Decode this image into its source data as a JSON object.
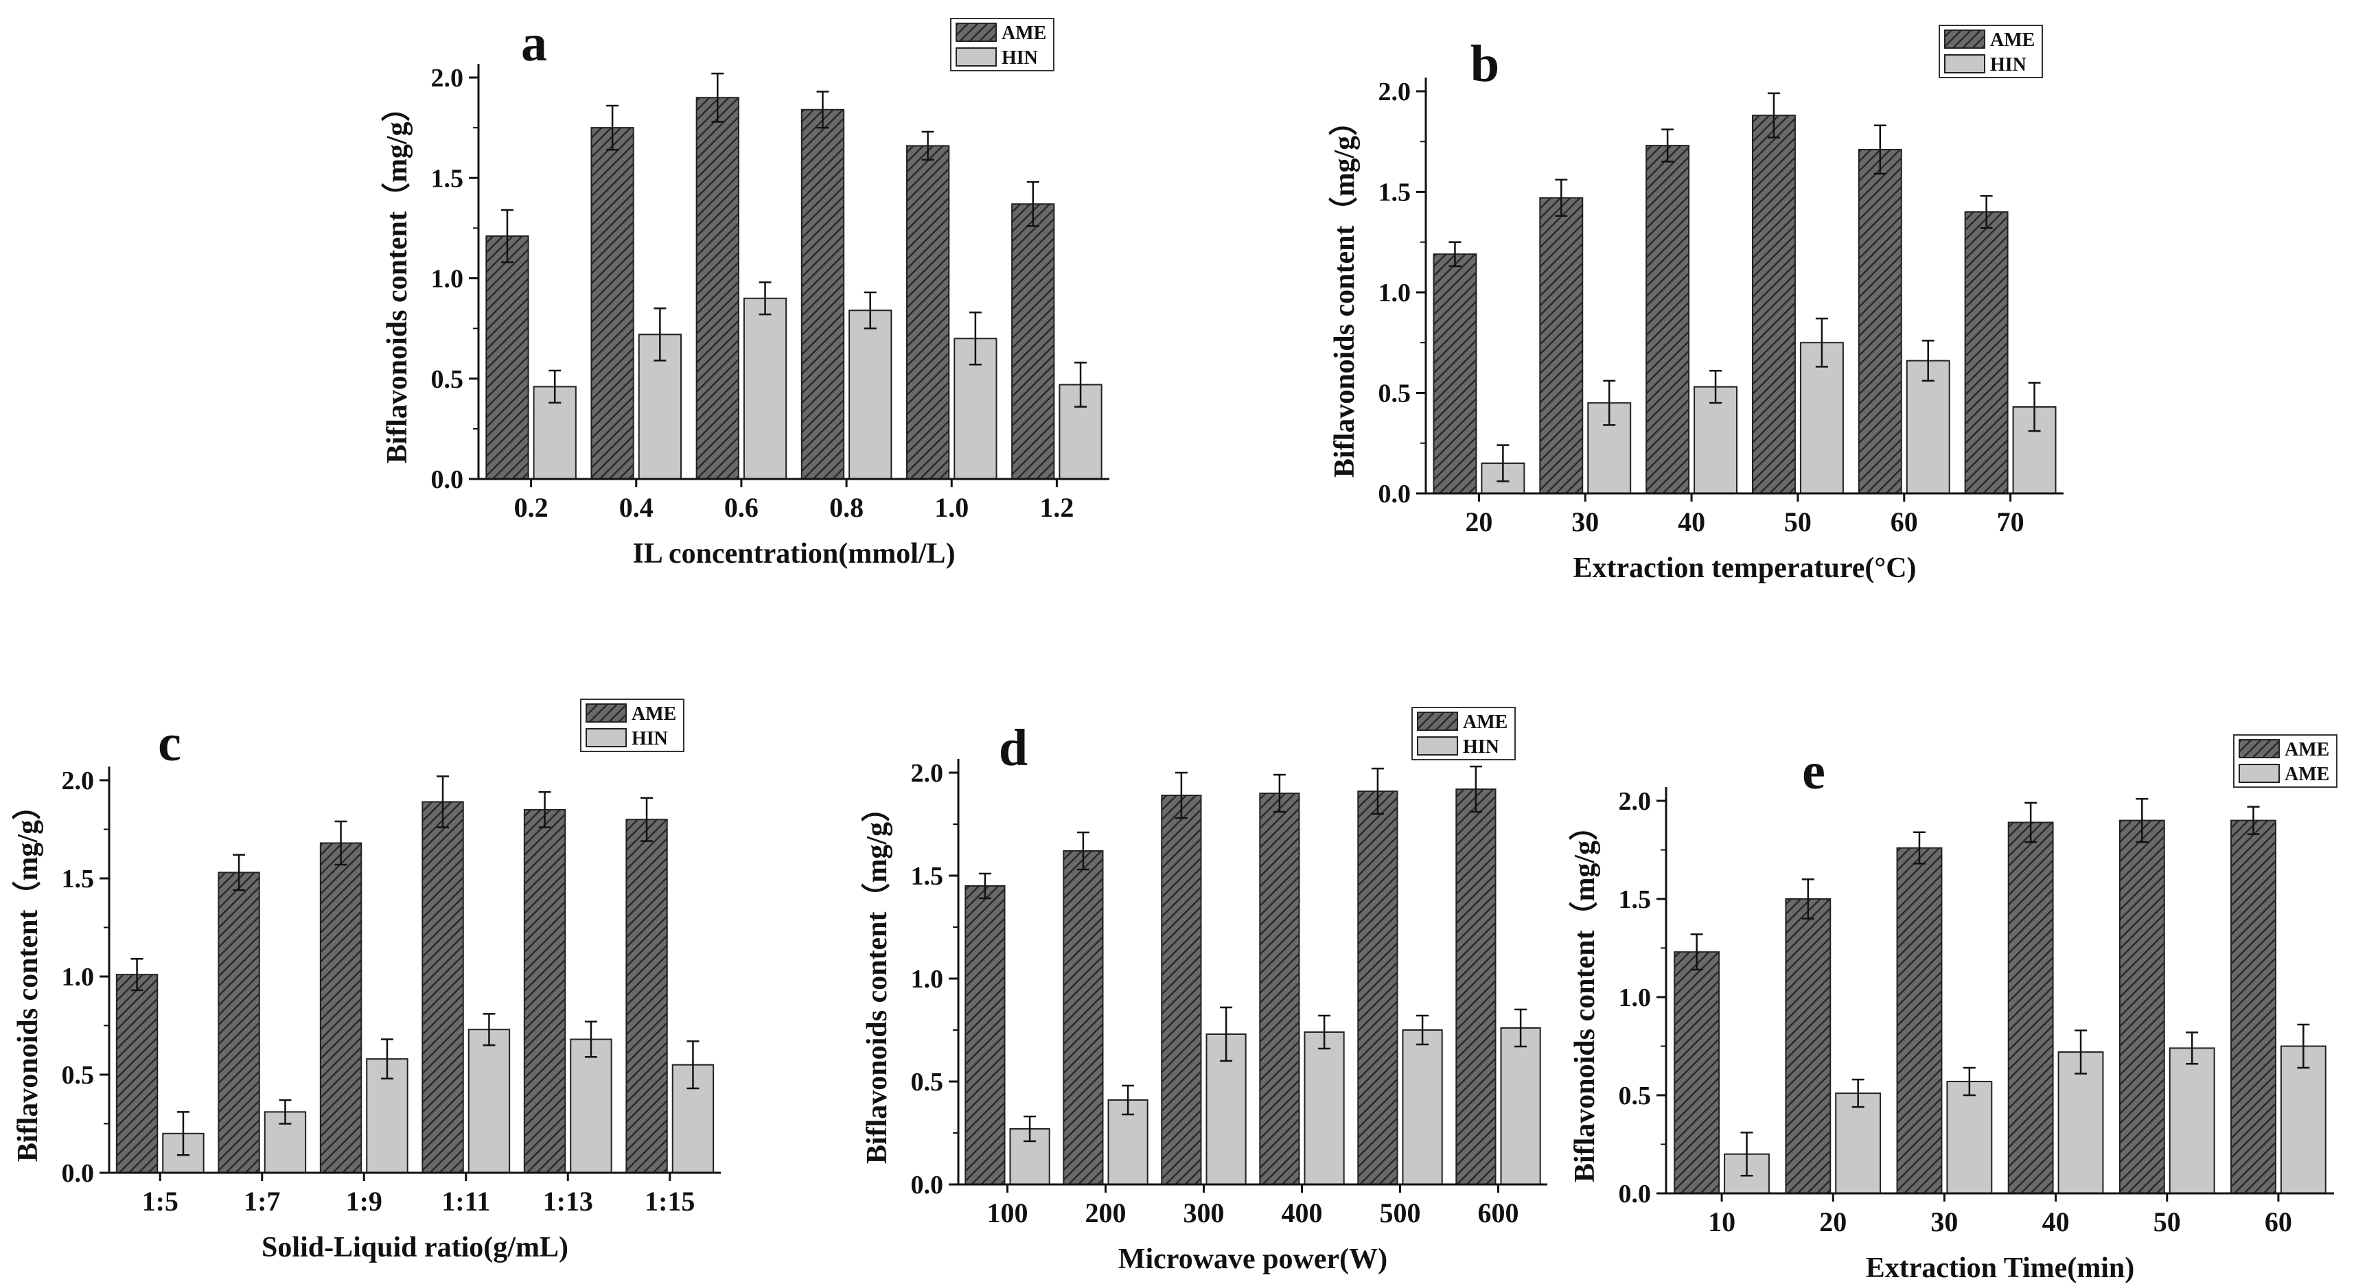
{
  "colors": {
    "ame_fill": "#555555",
    "hin_fill": "#c8c8c8",
    "axis": "#111111"
  },
  "chart_data": [
    {
      "panel": "a",
      "type": "bar",
      "xlabel": "IL concentration(mmol/L)",
      "ylabel": "Biflavonoids content（mg/g）",
      "ylim": [
        0,
        2.0
      ],
      "yticks": [
        "0.0",
        "0.5",
        "1.0",
        "1.5",
        "2.0"
      ],
      "categories": [
        "0.2",
        "0.4",
        "0.6",
        "0.8",
        "1.0",
        "1.2"
      ],
      "series": [
        {
          "name": "AME",
          "values": [
            1.21,
            1.75,
            1.9,
            1.84,
            1.66,
            1.37
          ],
          "errors": [
            0.13,
            0.11,
            0.12,
            0.09,
            0.07,
            0.11
          ]
        },
        {
          "name": "HIN",
          "values": [
            0.46,
            0.72,
            0.9,
            0.84,
            0.7,
            0.47
          ],
          "errors": [
            0.08,
            0.13,
            0.08,
            0.09,
            0.13,
            0.11
          ]
        }
      ],
      "legend_loc": "top-right"
    },
    {
      "panel": "b",
      "type": "bar",
      "xlabel": "Extraction temperature(°C)",
      "ylabel": "Biflavonoids content（mg/g）",
      "ylim": [
        0,
        2.0
      ],
      "yticks": [
        "0.0",
        "0.5",
        "1.0",
        "1.5",
        "2.0"
      ],
      "categories": [
        "20",
        "30",
        "40",
        "50",
        "60",
        "70"
      ],
      "series": [
        {
          "name": "AME",
          "values": [
            1.19,
            1.47,
            1.73,
            1.88,
            1.71,
            1.4
          ],
          "errors": [
            0.06,
            0.09,
            0.08,
            0.11,
            0.12,
            0.08
          ]
        },
        {
          "name": "HIN",
          "values": [
            0.15,
            0.45,
            0.53,
            0.75,
            0.66,
            0.43
          ],
          "errors": [
            0.09,
            0.11,
            0.08,
            0.12,
            0.1,
            0.12
          ]
        }
      ],
      "legend_loc": "top-right"
    },
    {
      "panel": "c",
      "type": "bar",
      "xlabel": "Solid-Liquid ratio(g/mL)",
      "ylabel": "Biflavonoids content（mg/g）",
      "ylim": [
        0,
        2.0
      ],
      "yticks": [
        "0.0",
        "0.5",
        "1.0",
        "1.5",
        "2.0"
      ],
      "categories": [
        "1:5",
        "1:7",
        "1:9",
        "1:11",
        "1:13",
        "1:15"
      ],
      "series": [
        {
          "name": "AME",
          "values": [
            1.01,
            1.53,
            1.68,
            1.89,
            1.85,
            1.8
          ],
          "errors": [
            0.08,
            0.09,
            0.11,
            0.13,
            0.09,
            0.11
          ]
        },
        {
          "name": "HIN",
          "values": [
            0.2,
            0.31,
            0.58,
            0.73,
            0.68,
            0.55
          ],
          "errors": [
            0.11,
            0.06,
            0.1,
            0.08,
            0.09,
            0.12
          ]
        }
      ],
      "legend_loc": "top-right"
    },
    {
      "panel": "d",
      "type": "bar",
      "xlabel": "Microwave power(W)",
      "ylabel": "Biflavonoids content（mg/g）",
      "ylim": [
        0,
        2.0
      ],
      "yticks": [
        "0.0",
        "0.5",
        "1.0",
        "1.5",
        "2.0"
      ],
      "categories": [
        "100",
        "200",
        "300",
        "400",
        "500",
        "600"
      ],
      "series": [
        {
          "name": "AME",
          "values": [
            1.45,
            1.62,
            1.89,
            1.9,
            1.91,
            1.92
          ],
          "errors": [
            0.06,
            0.09,
            0.11,
            0.09,
            0.11,
            0.11
          ]
        },
        {
          "name": "HIN",
          "values": [
            0.27,
            0.41,
            0.73,
            0.74,
            0.75,
            0.76
          ],
          "errors": [
            0.06,
            0.07,
            0.13,
            0.08,
            0.07,
            0.09
          ]
        }
      ],
      "legend_loc": "top-right"
    },
    {
      "panel": "e",
      "type": "bar",
      "xlabel": "Extraction Time(min)",
      "ylabel": "Biflavonoids content（mg/g）",
      "ylim": [
        0,
        2.0
      ],
      "yticks": [
        "0.0",
        "0.5",
        "1.0",
        "1.5",
        "2.0"
      ],
      "categories": [
        "10",
        "20",
        "30",
        "40",
        "50",
        "60"
      ],
      "series": [
        {
          "name": "AME",
          "values": [
            1.23,
            1.5,
            1.76,
            1.89,
            1.9,
            1.9
          ],
          "errors": [
            0.09,
            0.1,
            0.08,
            0.1,
            0.11,
            0.07
          ]
        },
        {
          "name": "AME",
          "values": [
            0.2,
            0.51,
            0.57,
            0.72,
            0.74,
            0.75
          ],
          "errors": [
            0.11,
            0.07,
            0.07,
            0.11,
            0.08,
            0.11
          ]
        }
      ],
      "legend_loc": "top-right"
    }
  ]
}
